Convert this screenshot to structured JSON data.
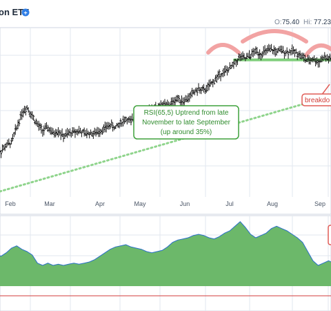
{
  "header": {
    "title": "on ETF",
    "info_icon": "info-circle-icon",
    "readouts": [
      {
        "label": "O:",
        "value": "75.40"
      },
      {
        "label": "Hi:",
        "value": "77.23"
      }
    ]
  },
  "annotations": {
    "rsi_note": [
      "RSI(65,5) Uptrend from late",
      "November to late September",
      "(up around 35%)"
    ],
    "breakdown_label": "breakdo"
  },
  "colors": {
    "price_bars": "#111111",
    "trendline": "#8fd48c",
    "support_line": "#7fce7b",
    "arc": "#f2a3a3",
    "breakdown_box": "#e05b55",
    "rsi_fill": "#6cb86a",
    "rsi_line": "#2a6fc9",
    "grid": "#e2e7ef",
    "threshold_line": "#d33b3b"
  },
  "chart_data": [
    {
      "type": "ohlc",
      "x_ticks": [
        "Feb",
        "Mar",
        "Apr",
        "May",
        "Jun",
        "Jul",
        "Aug",
        "Sep"
      ],
      "grid": true,
      "series": [
        {
          "values": [
            60.0,
            59.5,
            60.5,
            61.0,
            63.5,
            66.0,
            67.0,
            65.5,
            64.0,
            63.0,
            63.5,
            62.5,
            63.0,
            62.0,
            62.5,
            62.8,
            63.0,
            62.5,
            62.6,
            62.5,
            63.0,
            63.4,
            64.0,
            63.5,
            64.3,
            65.0,
            64.5,
            65.5,
            66.5,
            66.0,
            66.8,
            67.0,
            67.5,
            67.2,
            67.8,
            68.5,
            68.0,
            68.5,
            69.5,
            70.0,
            69.8,
            70.5,
            71.5,
            72.5,
            73.0,
            73.5,
            74.5,
            75.5,
            75.2,
            75.8,
            76.5,
            76.0,
            76.5,
            76.7,
            76.4,
            76.6,
            76.3,
            76.5,
            76.2,
            75.5,
            74.8,
            75.2,
            74.6,
            75.4,
            75.2,
            75.0
          ]
        }
      ],
      "overlays": {
        "trendline": {
          "start": [
            0,
            52.5
          ],
          "end": [
            65,
            69.0
          ]
        },
        "support_level": 75.0
      }
    },
    {
      "type": "area",
      "grid": true,
      "series": [
        {
          "values": [
            38,
            36,
            39,
            43,
            45,
            42,
            40,
            37,
            30,
            28,
            30,
            28,
            29,
            28,
            29,
            30,
            29,
            30,
            31,
            33,
            36,
            39,
            42,
            44,
            45,
            46,
            44,
            43,
            42,
            40,
            39,
            40,
            41,
            44,
            48,
            50,
            51,
            52,
            54,
            55,
            54,
            52,
            51,
            53,
            56,
            58,
            62,
            66,
            61,
            55,
            52,
            54,
            56,
            60,
            62,
            60,
            58,
            55,
            52,
            48,
            40,
            32,
            28,
            30,
            32,
            30
          ]
        }
      ]
    }
  ]
}
